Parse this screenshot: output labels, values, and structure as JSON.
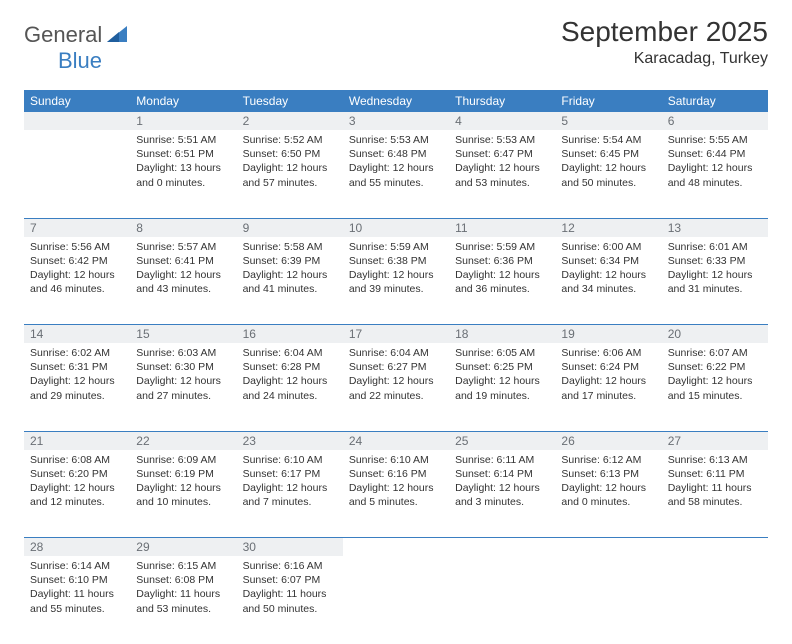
{
  "brand": {
    "text1": "General",
    "text2": "Blue"
  },
  "title": "September 2025",
  "location": "Karacadag, Turkey",
  "colors": {
    "header_bg": "#3a7ec1",
    "header_fg": "#ffffff",
    "daynum_bg": "#eef0f2",
    "daynum_fg": "#6a6f75",
    "rule": "#3a7ec1",
    "logo_gray": "#555555",
    "logo_blue": "#3a7ec1",
    "text": "#333333"
  },
  "weekdays": [
    "Sunday",
    "Monday",
    "Tuesday",
    "Wednesday",
    "Thursday",
    "Friday",
    "Saturday"
  ],
  "weeks": [
    [
      null,
      {
        "n": "1",
        "sr": "5:51 AM",
        "ss": "6:51 PM",
        "dl": "13 hours and 0 minutes."
      },
      {
        "n": "2",
        "sr": "5:52 AM",
        "ss": "6:50 PM",
        "dl": "12 hours and 57 minutes."
      },
      {
        "n": "3",
        "sr": "5:53 AM",
        "ss": "6:48 PM",
        "dl": "12 hours and 55 minutes."
      },
      {
        "n": "4",
        "sr": "5:53 AM",
        "ss": "6:47 PM",
        "dl": "12 hours and 53 minutes."
      },
      {
        "n": "5",
        "sr": "5:54 AM",
        "ss": "6:45 PM",
        "dl": "12 hours and 50 minutes."
      },
      {
        "n": "6",
        "sr": "5:55 AM",
        "ss": "6:44 PM",
        "dl": "12 hours and 48 minutes."
      }
    ],
    [
      {
        "n": "7",
        "sr": "5:56 AM",
        "ss": "6:42 PM",
        "dl": "12 hours and 46 minutes."
      },
      {
        "n": "8",
        "sr": "5:57 AM",
        "ss": "6:41 PM",
        "dl": "12 hours and 43 minutes."
      },
      {
        "n": "9",
        "sr": "5:58 AM",
        "ss": "6:39 PM",
        "dl": "12 hours and 41 minutes."
      },
      {
        "n": "10",
        "sr": "5:59 AM",
        "ss": "6:38 PM",
        "dl": "12 hours and 39 minutes."
      },
      {
        "n": "11",
        "sr": "5:59 AM",
        "ss": "6:36 PM",
        "dl": "12 hours and 36 minutes."
      },
      {
        "n": "12",
        "sr": "6:00 AM",
        "ss": "6:34 PM",
        "dl": "12 hours and 34 minutes."
      },
      {
        "n": "13",
        "sr": "6:01 AM",
        "ss": "6:33 PM",
        "dl": "12 hours and 31 minutes."
      }
    ],
    [
      {
        "n": "14",
        "sr": "6:02 AM",
        "ss": "6:31 PM",
        "dl": "12 hours and 29 minutes."
      },
      {
        "n": "15",
        "sr": "6:03 AM",
        "ss": "6:30 PM",
        "dl": "12 hours and 27 minutes."
      },
      {
        "n": "16",
        "sr": "6:04 AM",
        "ss": "6:28 PM",
        "dl": "12 hours and 24 minutes."
      },
      {
        "n": "17",
        "sr": "6:04 AM",
        "ss": "6:27 PM",
        "dl": "12 hours and 22 minutes."
      },
      {
        "n": "18",
        "sr": "6:05 AM",
        "ss": "6:25 PM",
        "dl": "12 hours and 19 minutes."
      },
      {
        "n": "19",
        "sr": "6:06 AM",
        "ss": "6:24 PM",
        "dl": "12 hours and 17 minutes."
      },
      {
        "n": "20",
        "sr": "6:07 AM",
        "ss": "6:22 PM",
        "dl": "12 hours and 15 minutes."
      }
    ],
    [
      {
        "n": "21",
        "sr": "6:08 AM",
        "ss": "6:20 PM",
        "dl": "12 hours and 12 minutes."
      },
      {
        "n": "22",
        "sr": "6:09 AM",
        "ss": "6:19 PM",
        "dl": "12 hours and 10 minutes."
      },
      {
        "n": "23",
        "sr": "6:10 AM",
        "ss": "6:17 PM",
        "dl": "12 hours and 7 minutes."
      },
      {
        "n": "24",
        "sr": "6:10 AM",
        "ss": "6:16 PM",
        "dl": "12 hours and 5 minutes."
      },
      {
        "n": "25",
        "sr": "6:11 AM",
        "ss": "6:14 PM",
        "dl": "12 hours and 3 minutes."
      },
      {
        "n": "26",
        "sr": "6:12 AM",
        "ss": "6:13 PM",
        "dl": "12 hours and 0 minutes."
      },
      {
        "n": "27",
        "sr": "6:13 AM",
        "ss": "6:11 PM",
        "dl": "11 hours and 58 minutes."
      }
    ],
    [
      {
        "n": "28",
        "sr": "6:14 AM",
        "ss": "6:10 PM",
        "dl": "11 hours and 55 minutes."
      },
      {
        "n": "29",
        "sr": "6:15 AM",
        "ss": "6:08 PM",
        "dl": "11 hours and 53 minutes."
      },
      {
        "n": "30",
        "sr": "6:16 AM",
        "ss": "6:07 PM",
        "dl": "11 hours and 50 minutes."
      },
      null,
      null,
      null,
      null
    ]
  ],
  "labels": {
    "sunrise": "Sunrise:",
    "sunset": "Sunset:",
    "daylight": "Daylight:"
  }
}
